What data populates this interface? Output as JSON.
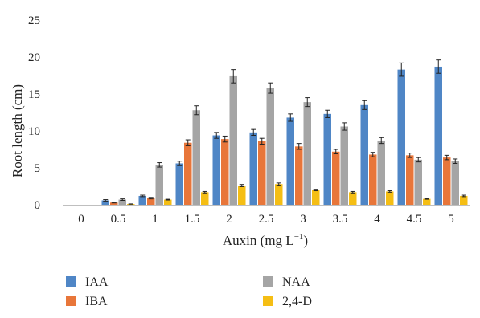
{
  "chart_data": {
    "type": "bar",
    "title": "",
    "xlabel": "Auxin (mg L",
    "xlabel_sup": "−1",
    "xlabel_close": ")",
    "ylabel": "Root length (cm)",
    "ylim": [
      0,
      25
    ],
    "yticks": [
      0,
      5,
      10,
      15,
      20,
      25
    ],
    "grid": false,
    "legend_position": "bottom",
    "categories": [
      "0",
      "0.5",
      "1",
      "1.5",
      "2",
      "2.5",
      "3",
      "3.5",
      "4",
      "4.5",
      "5"
    ],
    "series": [
      {
        "name": "IAA",
        "color": "#4f86c6",
        "values": [
          0,
          0.6,
          1.2,
          5.6,
          9.4,
          9.8,
          11.8,
          12.3,
          13.5,
          18.3,
          18.7
        ],
        "errors": [
          0,
          0.1,
          0.1,
          0.3,
          0.4,
          0.4,
          0.5,
          0.5,
          0.6,
          0.9,
          0.9
        ]
      },
      {
        "name": "IBA",
        "color": "#e8763a",
        "values": [
          0,
          0.3,
          0.9,
          8.4,
          8.9,
          8.6,
          7.9,
          7.2,
          6.8,
          6.7,
          6.4
        ],
        "errors": [
          0,
          0.05,
          0.1,
          0.4,
          0.4,
          0.4,
          0.4,
          0.3,
          0.3,
          0.3,
          0.3
        ]
      },
      {
        "name": "NAA",
        "color": "#a5a5a5",
        "values": [
          0,
          0.7,
          5.4,
          12.8,
          17.4,
          15.8,
          13.9,
          10.6,
          8.7,
          6.1,
          5.9
        ],
        "errors": [
          0,
          0.1,
          0.3,
          0.6,
          0.9,
          0.7,
          0.6,
          0.5,
          0.4,
          0.3,
          0.3
        ]
      },
      {
        "name": "2,4-D",
        "color": "#f5be14",
        "values": [
          0,
          0.1,
          0.7,
          1.7,
          2.6,
          2.8,
          2.0,
          1.7,
          1.8,
          0.8,
          1.2
        ],
        "errors": [
          0,
          0.02,
          0.05,
          0.1,
          0.15,
          0.15,
          0.1,
          0.1,
          0.1,
          0.05,
          0.1
        ]
      }
    ]
  }
}
